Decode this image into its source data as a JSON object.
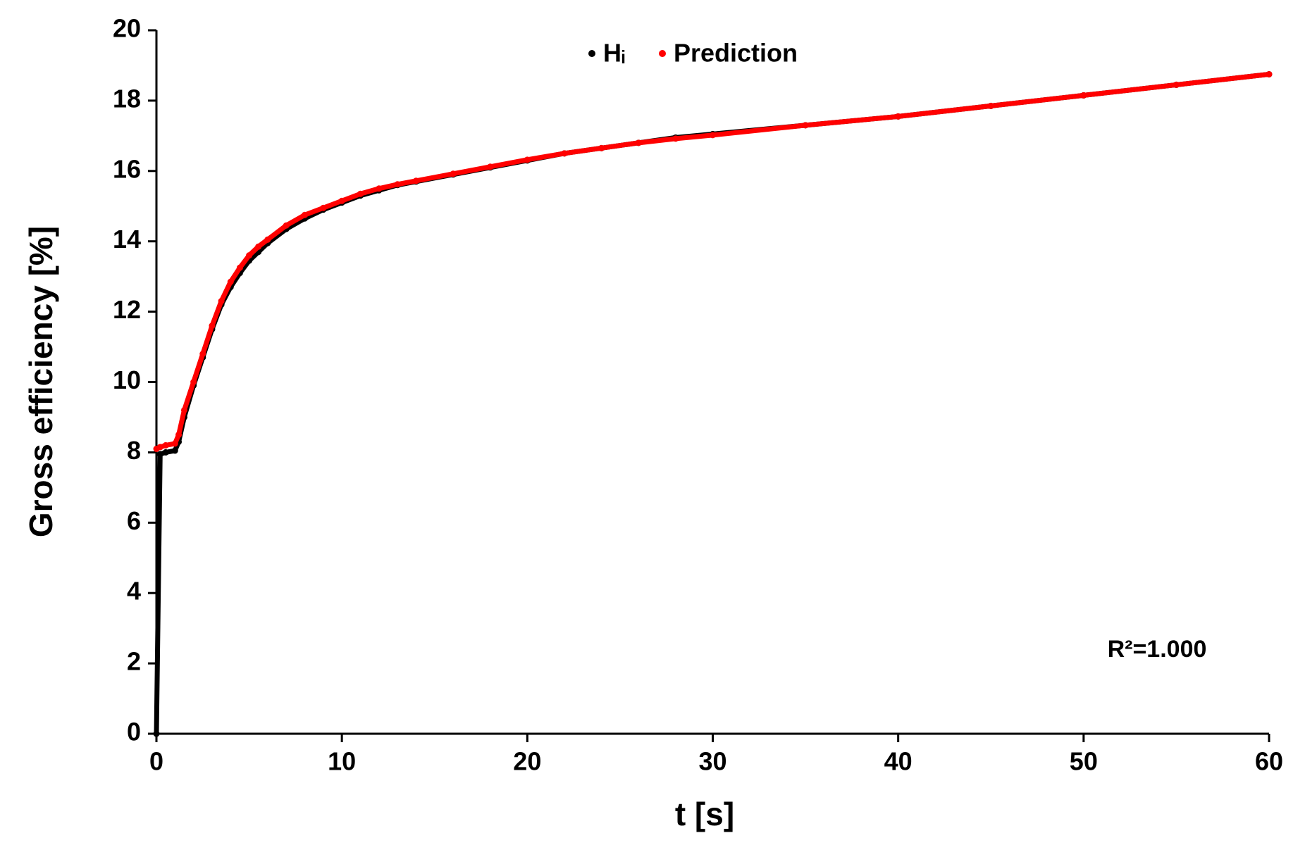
{
  "chart_data": {
    "type": "scatter",
    "x_label": "t [s]",
    "y_label": "Gross efficiency [%]",
    "annotation": "R²=1.000",
    "x": [
      0,
      0.2,
      0.5,
      1,
      1.2,
      1.5,
      2,
      2.5,
      3,
      3.5,
      4,
      4.5,
      5,
      5.5,
      6,
      7,
      8,
      9,
      10,
      11,
      12,
      13,
      14,
      16,
      18,
      20,
      22,
      24,
      26,
      28,
      30,
      35,
      40,
      45,
      50,
      55,
      60
    ],
    "series": [
      {
        "name": "Hᵢ",
        "color": "#000000",
        "values": [
          0,
          7.95,
          8.0,
          8.05,
          8.3,
          9.0,
          9.9,
          10.7,
          11.5,
          12.2,
          12.7,
          13.1,
          13.45,
          13.7,
          13.95,
          14.35,
          14.65,
          14.9,
          15.1,
          15.3,
          15.45,
          15.6,
          15.7,
          15.9,
          16.1,
          16.3,
          16.5,
          16.65,
          16.8,
          16.95,
          17.05,
          17.3,
          17.55,
          17.85,
          18.15,
          18.45,
          18.75
        ]
      },
      {
        "name": "Prediction",
        "color": "#ff0000",
        "values": [
          8.1,
          8.15,
          8.2,
          8.25,
          8.5,
          9.2,
          10.0,
          10.8,
          11.6,
          12.3,
          12.85,
          13.25,
          13.6,
          13.85,
          14.05,
          14.45,
          14.75,
          14.95,
          15.15,
          15.35,
          15.5,
          15.62,
          15.72,
          15.92,
          16.12,
          16.32,
          16.5,
          16.65,
          16.8,
          16.92,
          17.02,
          17.3,
          17.55,
          17.85,
          18.15,
          18.45,
          18.75
        ]
      }
    ],
    "xlim": [
      0,
      60
    ],
    "xticks": [
      0,
      10,
      20,
      30,
      40,
      50,
      60
    ],
    "ylim": [
      0,
      20
    ],
    "yticks": [
      0,
      2,
      4,
      6,
      8,
      10,
      12,
      14,
      16,
      18,
      20
    ]
  }
}
